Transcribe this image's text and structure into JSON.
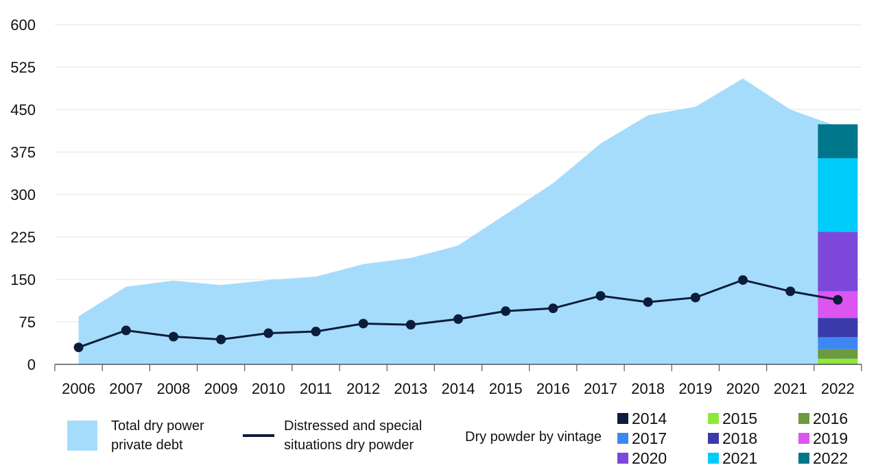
{
  "chart_data": {
    "type": "area",
    "categories": [
      "2006",
      "2007",
      "2008",
      "2009",
      "2010",
      "2011",
      "2012",
      "2013",
      "2014",
      "2015",
      "2016",
      "2017",
      "2018",
      "2019",
      "2020",
      "2021",
      "2022"
    ],
    "ylim": [
      0,
      600
    ],
    "yticks": [
      "0",
      "75",
      "150",
      "225",
      "300",
      "375",
      "450",
      "525",
      "600"
    ],
    "grid": true,
    "series": [
      {
        "name": "Total dry power private debt",
        "type": "area",
        "color": "#a6dcfb",
        "values": [
          85,
          137,
          148,
          140,
          149,
          155,
          177,
          188,
          210,
          265,
          320,
          390,
          440,
          455,
          505,
          450,
          420
        ]
      },
      {
        "name": "Distressed and special situations dry powder",
        "type": "line",
        "color": "#0b1d3a",
        "values": [
          30,
          60,
          49,
          44,
          55,
          58,
          72,
          70,
          80,
          94,
          99,
          121,
          110,
          118,
          149,
          129,
          114
        ]
      }
    ],
    "stacked_bar": {
      "category": "2022",
      "title": "Dry powder by vintage",
      "segments": [
        {
          "name": "2014",
          "value": 1,
          "color": "#0b1d3a"
        },
        {
          "name": "2015",
          "value": 9,
          "color": "#8ee83c"
        },
        {
          "name": "2016",
          "value": 17,
          "color": "#6b9a3f"
        },
        {
          "name": "2017",
          "value": 21,
          "color": "#3d87f5"
        },
        {
          "name": "2018",
          "value": 34,
          "color": "#3a3aaa"
        },
        {
          "name": "2019",
          "value": 47,
          "color": "#dd55f0"
        },
        {
          "name": "2020",
          "value": 105,
          "color": "#7d48d9"
        },
        {
          "name": "2021",
          "value": 130,
          "color": "#00ccfa"
        },
        {
          "name": "2022",
          "value": 60,
          "color": "#00768a"
        }
      ]
    }
  }
}
